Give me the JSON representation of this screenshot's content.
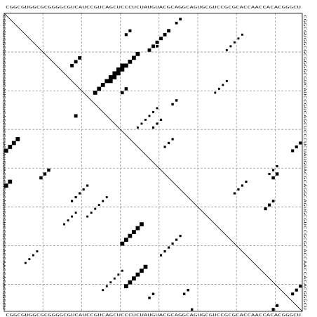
{
  "sequence": "CGGCGUGGCGCGGGGCGUCAUCCGUCAGCUCCCUCUAUGUACGCAGGCAGUGCGUCCGCGCACCAACCACACGGGCU",
  "chart_data": {
    "type": "heatmap",
    "description_of_axes": "RNA sequence dot plot; position index 1..77 along both axes",
    "n": 77,
    "grid_every": 10,
    "upper_triangle": [
      {
        "i": 2,
        "j": 46,
        "len": 2,
        "p": 0.4
      },
      {
        "i": 5,
        "j": 33,
        "len": 2,
        "p": 0.5
      },
      {
        "i": 5,
        "j": 43,
        "len": 6,
        "p": 0.7
      },
      {
        "i": 6,
        "j": 62,
        "len": 5,
        "p": 0.25
      },
      {
        "i": 9,
        "j": 40,
        "len": 1,
        "p": 0.4
      },
      {
        "i": 11,
        "j": 35,
        "len": 8,
        "p": 1.0
      },
      {
        "i": 12,
        "j": 20,
        "len": 3,
        "p": 0.7
      },
      {
        "i": 16,
        "j": 30,
        "len": 3,
        "p": 0.6
      },
      {
        "i": 20,
        "j": 32,
        "len": 2,
        "p": 0.6
      },
      {
        "i": 14,
        "j": 31,
        "len": 8,
        "p": 1.0
      },
      {
        "i": 18,
        "j": 58,
        "len": 4,
        "p": 0.25
      },
      {
        "i": 23,
        "j": 45,
        "len": 2,
        "p": 0.35
      },
      {
        "i": 25,
        "j": 40,
        "len": 6,
        "p": 0.25
      },
      {
        "i": 28,
        "j": 41,
        "len": 3,
        "p": 0.3
      },
      {
        "i": 34,
        "j": 77,
        "len": 3,
        "p": 0.5
      },
      {
        "i": 33,
        "j": 44,
        "len": 3,
        "p": 0.3
      },
      {
        "i": 40,
        "j": 71,
        "len": 3,
        "p": 0.3
      },
      {
        "i": 42,
        "j": 71,
        "len": 2,
        "p": 0.6
      },
      {
        "i": 44,
        "j": 63,
        "len": 4,
        "p": 0.3
      }
    ],
    "lower_triangle": [
      {
        "i": 33,
        "j": 4,
        "len": 8,
        "p": 1.0
      },
      {
        "i": 44,
        "j": 2,
        "len": 8,
        "p": 1.0
      },
      {
        "i": 41,
        "j": 12,
        "len": 3,
        "p": 0.6
      },
      {
        "i": 27,
        "j": 19,
        "len": 1,
        "p": 0.7
      },
      {
        "i": 55,
        "j": 36,
        "len": 6,
        "p": 1.0
      },
      {
        "i": 66,
        "j": 37,
        "len": 6,
        "p": 1.0
      },
      {
        "i": 58,
        "j": 46,
        "len": 6,
        "p": 0.3
      },
      {
        "i": 48,
        "j": 27,
        "len": 6,
        "p": 0.25
      },
      {
        "i": 52,
        "j": 19,
        "len": 4,
        "p": 0.25
      },
      {
        "i": 45,
        "j": 22,
        "len": 5,
        "p": 0.3
      },
      {
        "i": 62,
        "j": 9,
        "len": 4,
        "p": 0.25
      },
      {
        "i": 67,
        "j": 31,
        "len": 6,
        "p": 0.25
      },
      {
        "i": 72,
        "j": 48,
        "len": 2,
        "p": 0.35
      },
      {
        "i": 73,
        "j": 39,
        "len": 2,
        "p": 0.35
      },
      {
        "i": 77,
        "j": 49,
        "len": 3,
        "p": 0.35
      },
      {
        "i": 79,
        "j": 30,
        "len": 5,
        "p": 0.3
      },
      {
        "i": 79,
        "j": 48,
        "len": 2,
        "p": 0.5
      },
      {
        "i": 71,
        "j": 77,
        "len": 3,
        "p": 0.5
      },
      {
        "i": 76,
        "j": 71,
        "len": 3,
        "p": 0.5
      },
      {
        "i": 49,
        "j": 70,
        "len": 3,
        "p": 0.4
      },
      {
        "i": 50,
        "j": 69,
        "len": 2,
        "p": 0.5
      },
      {
        "i": 51,
        "j": 79,
        "len": 2,
        "p": 0.45
      }
    ]
  }
}
